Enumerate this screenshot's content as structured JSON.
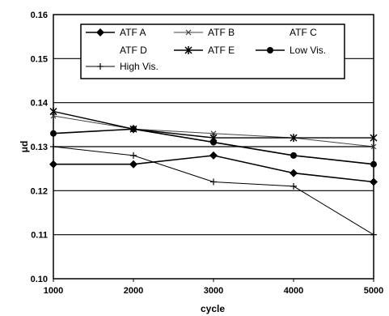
{
  "chart_data": {
    "type": "line",
    "xlabel": "cycle",
    "ylabel": "μd",
    "x": [
      1000,
      2000,
      3000,
      4000,
      5000
    ],
    "xlim": [
      1000,
      5000
    ],
    "ylim": [
      0.1,
      0.16
    ],
    "xticks": [
      "1000",
      "2000",
      "3000",
      "4000",
      "5000"
    ],
    "yticks": [
      "0.10",
      "0.11",
      "0.12",
      "0.13",
      "0.14",
      "0.15",
      "0.16"
    ],
    "grid": "horizontal",
    "legend_position": "top, inside plot",
    "series": [
      {
        "name": "ATF A",
        "values": [
          0.126,
          0.126,
          0.128,
          0.124,
          0.122
        ],
        "marker": "diamond",
        "color": "#000000",
        "linewidth": 1.6
      },
      {
        "name": "ATF B",
        "values": [
          0.137,
          0.134,
          0.133,
          0.132,
          0.13
        ],
        "marker": "x-bar",
        "color": "#444444",
        "linewidth": 1.0
      },
      {
        "name": "ATF C",
        "values": [
          0.13,
          0.13,
          0.13,
          0.13,
          0.13
        ],
        "marker": "none",
        "color": "#000000",
        "linewidth": 1.0
      },
      {
        "name": "ATF D",
        "values": [
          0.138,
          0.134,
          0.131,
          0.128,
          0.126
        ],
        "marker": "none",
        "color": "#000000",
        "linewidth": 1.0
      },
      {
        "name": "ATF E",
        "values": [
          0.138,
          0.134,
          0.132,
          0.132,
          0.132
        ],
        "marker": "asterisk",
        "color": "#000000",
        "linewidth": 1.4
      },
      {
        "name": "Low Vis.",
        "values": [
          0.133,
          0.134,
          0.131,
          0.128,
          0.126
        ],
        "marker": "circle",
        "color": "#000000",
        "linewidth": 1.6
      },
      {
        "name": "High Vis.",
        "values": [
          0.13,
          0.128,
          0.122,
          0.121,
          0.11
        ],
        "marker": "plus",
        "color": "#000000",
        "linewidth": 1.0
      }
    ]
  }
}
